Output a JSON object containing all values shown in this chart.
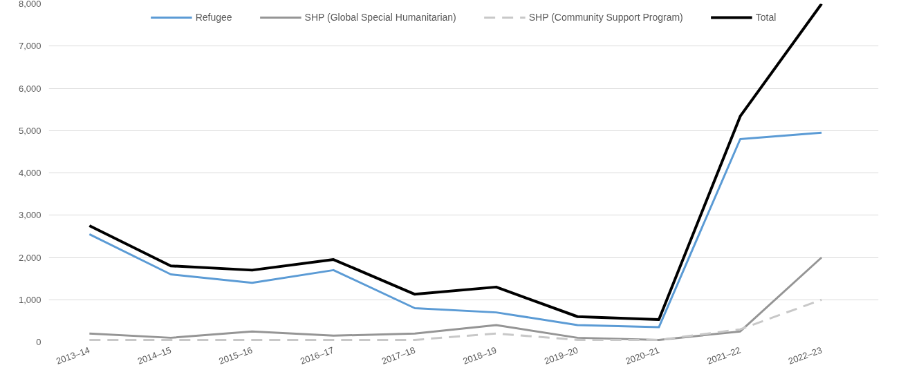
{
  "chart_data": {
    "type": "line",
    "categories": [
      "2013–14",
      "2014–15",
      "2015–16",
      "2016–17",
      "2017–18",
      "2018–19",
      "2019–20",
      "2020–21",
      "2021–22",
      "2022–23"
    ],
    "series": [
      {
        "name": "Refugee",
        "color": "#5b9bd5",
        "values": [
          2550,
          1600,
          1400,
          1700,
          800,
          700,
          400,
          350,
          4800,
          4950
        ]
      },
      {
        "name": "SHP (Global Special Humanitarian)",
        "color": "#959595",
        "values": [
          200,
          100,
          250,
          150,
          200,
          400,
          100,
          50,
          250,
          2000
        ]
      },
      {
        "name": "SHP (Community Support Program)",
        "color": "#c8c8c8",
        "line_style": "dashed",
        "values": [
          50,
          50,
          50,
          50,
          50,
          200,
          50,
          50,
          300,
          1000
        ]
      },
      {
        "name": "Total",
        "color": "#000000",
        "values": [
          2750,
          1800,
          1700,
          1950,
          1130,
          1300,
          600,
          530,
          5340,
          8000
        ]
      }
    ],
    "ylim": [
      0,
      8000
    ],
    "yticks": [
      {
        "value": 0,
        "label": "0"
      },
      {
        "value": 1000,
        "label": "1,000"
      },
      {
        "value": 2000,
        "label": "2,000"
      },
      {
        "value": 3000,
        "label": "3,000"
      },
      {
        "value": 4000,
        "label": "4,000"
      },
      {
        "value": 5000,
        "label": "5,000"
      },
      {
        "value": 6000,
        "label": "6,000"
      },
      {
        "value": 7000,
        "label": "7,000"
      },
      {
        "value": 8000,
        "label": "8,000"
      }
    ],
    "grid": "y",
    "legend": "top",
    "line_style": "solid",
    "marker": "none"
  }
}
